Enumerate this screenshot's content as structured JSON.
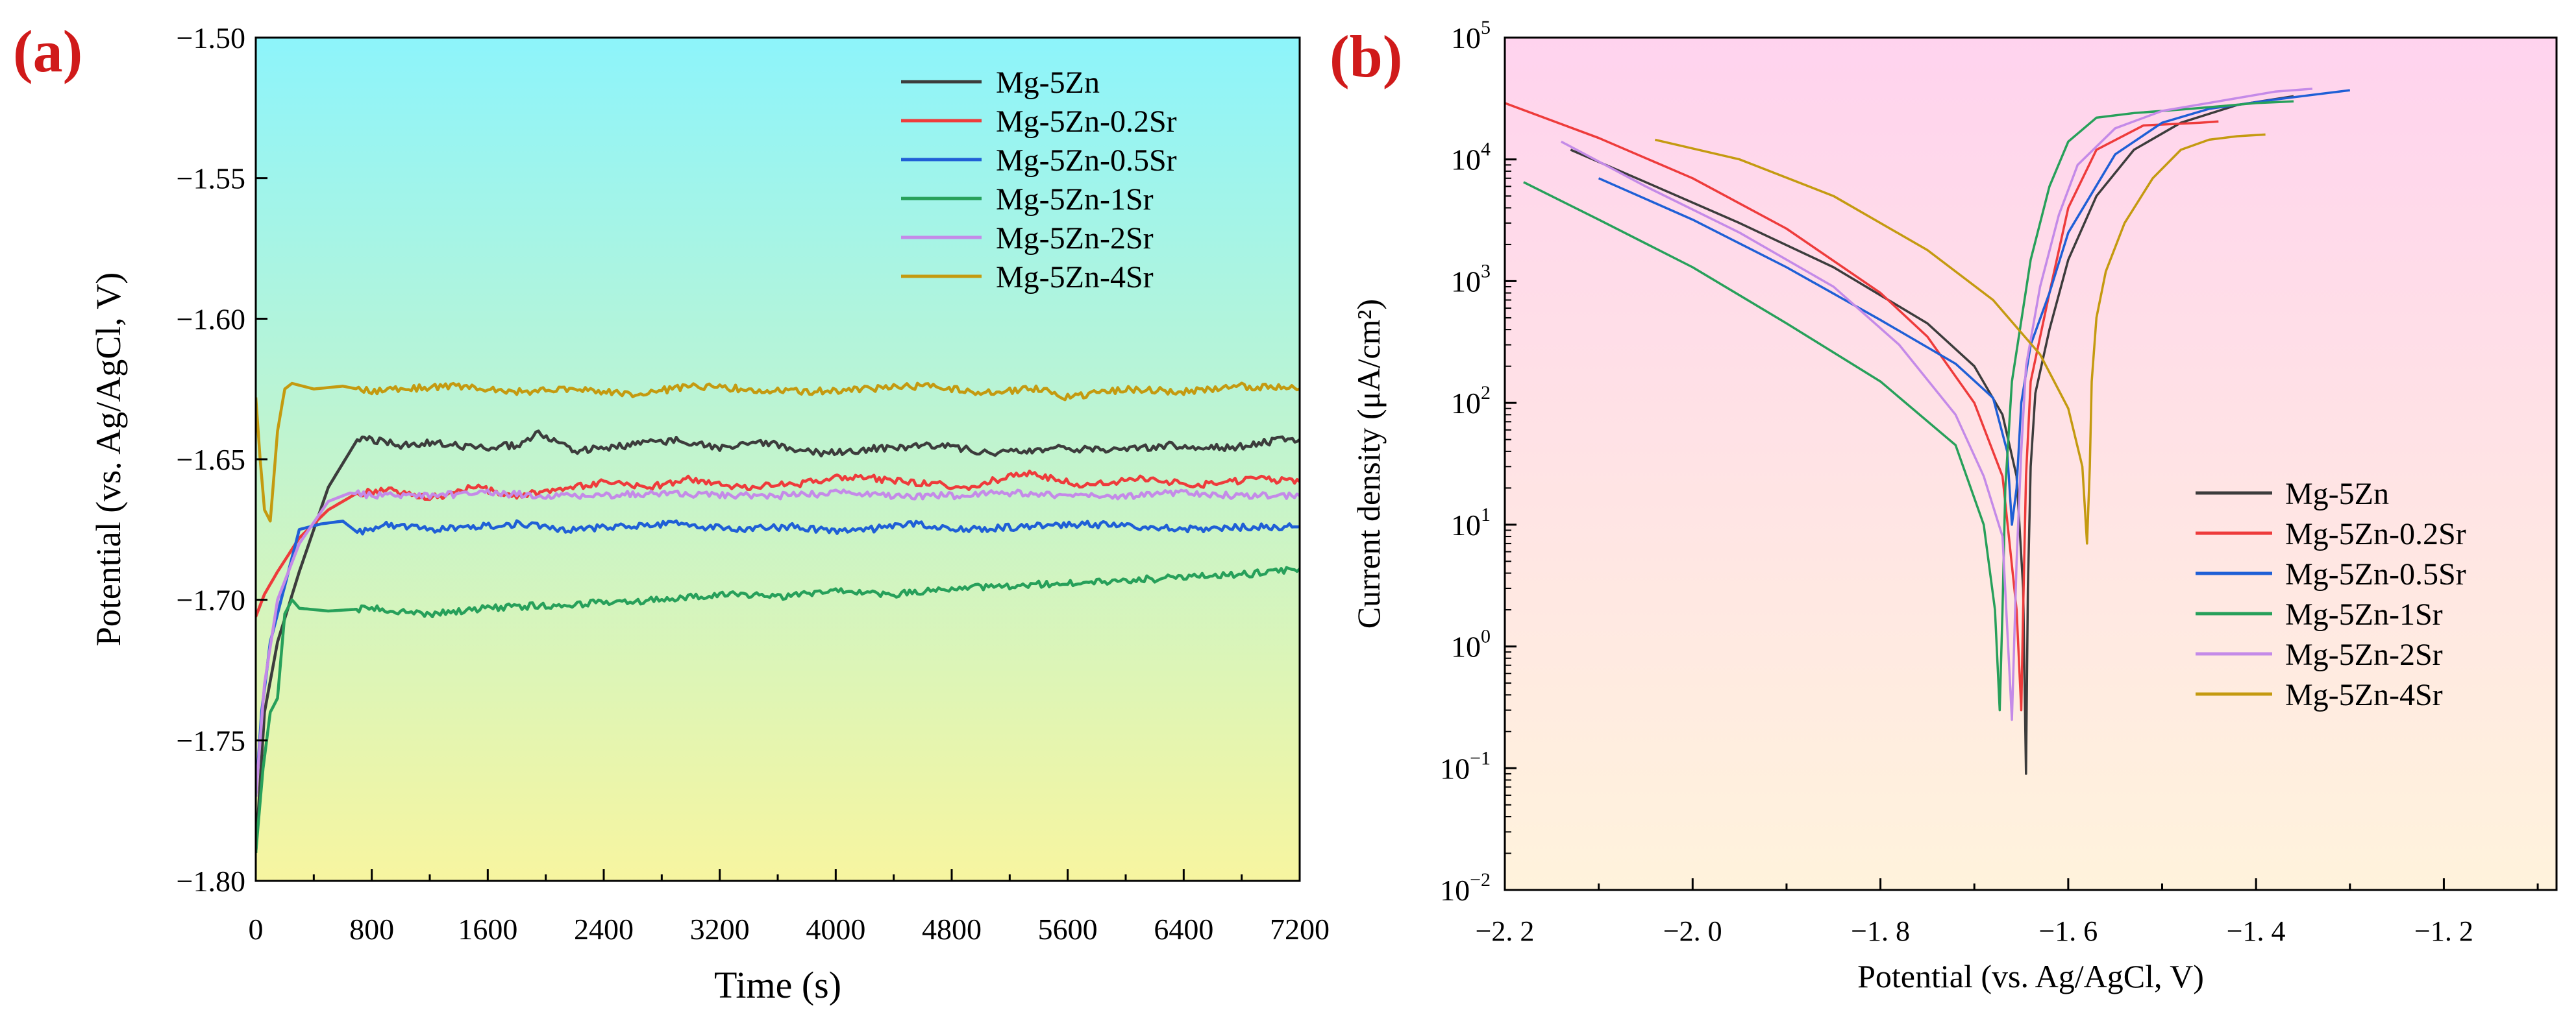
{
  "colors": {
    "Mg-5Zn": "#3c3c3c",
    "Mg-5Zn-0.2Sr": "#ee3b3b",
    "Mg-5Zn-0.5Sr": "#1f5fd6",
    "Mg-5Zn-1Sr": "#27a05a",
    "Mg-5Zn-2Sr": "#c48ae8",
    "Mg-5Zn-4Sr": "#c49a10",
    "panel_label": "#d01a1a",
    "bg_a_top": "#8df4fb",
    "bg_a_bottom": "#f7f5a0",
    "bg_b_top": "#ffd3ee",
    "bg_b_bottom": "#fff3dc"
  },
  "chart_data": [
    {
      "panel_label": "(a)",
      "type": "line",
      "title": "",
      "xlabel": "Time (s)",
      "ylabel": "Potential (vs. Ag/AgCl, V)",
      "xlim": [
        0,
        7200
      ],
      "ylim": [
        -1.8,
        -1.5
      ],
      "xticks": [
        "0",
        "800",
        "1600",
        "2400",
        "3200",
        "4000",
        "4800",
        "5600",
        "6400",
        "7200"
      ],
      "yticks": [
        "-1.50",
        "-1.55",
        "-1.60",
        "-1.65",
        "-1.70",
        "-1.75",
        "-1.80"
      ],
      "legend_position": "top-right",
      "grid": false,
      "series": [
        {
          "name": "Mg-5Zn",
          "x": [
            0,
            60,
            150,
            300,
            500,
            700,
            800,
            1000,
            1200,
            1500,
            1800,
            1950,
            2200,
            2600,
            2900,
            3200,
            3500,
            3900,
            4300,
            4700,
            5100,
            5500,
            5900,
            6300,
            6700,
            7100,
            7200
          ],
          "y": [
            -1.79,
            -1.74,
            -1.715,
            -1.69,
            -1.66,
            -1.643,
            -1.643,
            -1.645,
            -1.644,
            -1.646,
            -1.645,
            -1.641,
            -1.647,
            -1.645,
            -1.643,
            -1.646,
            -1.644,
            -1.648,
            -1.646,
            -1.645,
            -1.648,
            -1.646,
            -1.647,
            -1.645,
            -1.646,
            -1.643,
            -1.643
          ]
        },
        {
          "name": "Mg-5Zn-0.2Sr",
          "x": [
            0,
            60,
            150,
            300,
            500,
            700,
            900,
            1200,
            1500,
            1800,
            2100,
            2400,
            2700,
            3000,
            3300,
            3700,
            4100,
            4500,
            4900,
            5300,
            5700,
            6100,
            6500,
            6900,
            7200
          ],
          "y": [
            -1.706,
            -1.698,
            -1.69,
            -1.678,
            -1.668,
            -1.662,
            -1.661,
            -1.664,
            -1.66,
            -1.663,
            -1.661,
            -1.658,
            -1.66,
            -1.657,
            -1.66,
            -1.659,
            -1.656,
            -1.658,
            -1.66,
            -1.655,
            -1.659,
            -1.657,
            -1.659,
            -1.657,
            -1.658
          ]
        },
        {
          "name": "Mg-5Zn-0.5Sr",
          "x": [
            0,
            40,
            100,
            200,
            300,
            450,
            600,
            700,
            900,
            1200,
            1500,
            1800,
            2100,
            2500,
            2900,
            3300,
            3700,
            4100,
            4500,
            4900,
            5300,
            5700,
            6100,
            6500,
            6900,
            7200
          ],
          "y": [
            -1.77,
            -1.74,
            -1.715,
            -1.695,
            -1.675,
            -1.673,
            -1.672,
            -1.676,
            -1.673,
            -1.675,
            -1.674,
            -1.673,
            -1.675,
            -1.674,
            -1.673,
            -1.675,
            -1.674,
            -1.676,
            -1.673,
            -1.675,
            -1.674,
            -1.673,
            -1.674,
            -1.675,
            -1.674,
            -1.674
          ]
        },
        {
          "name": "Mg-5Zn-1Sr",
          "x": [
            0,
            50,
            100,
            150,
            200,
            250,
            300,
            500,
            800,
            1200,
            1600,
            2000,
            2400,
            2800,
            3200,
            3600,
            4000,
            4400,
            4800,
            5200,
            5600,
            6000,
            6400,
            6800,
            7200
          ],
          "y": [
            -1.79,
            -1.76,
            -1.74,
            -1.735,
            -1.705,
            -1.7,
            -1.703,
            -1.704,
            -1.703,
            -1.705,
            -1.703,
            -1.702,
            -1.701,
            -1.7,
            -1.698,
            -1.699,
            -1.697,
            -1.698,
            -1.696,
            -1.695,
            -1.694,
            -1.693,
            -1.692,
            -1.691,
            -1.689
          ]
        },
        {
          "name": "Mg-5Zn-2Sr",
          "x": [
            0,
            60,
            150,
            300,
            500,
            650,
            800,
            1200,
            1600,
            2000,
            2400,
            2800,
            3200,
            3600,
            4000,
            4400,
            4800,
            5200,
            5600,
            6000,
            6400,
            6800,
            7200
          ],
          "y": [
            -1.77,
            -1.73,
            -1.7,
            -1.68,
            -1.665,
            -1.662,
            -1.663,
            -1.663,
            -1.662,
            -1.663,
            -1.663,
            -1.662,
            -1.663,
            -1.663,
            -1.662,
            -1.663,
            -1.663,
            -1.662,
            -1.663,
            -1.663,
            -1.662,
            -1.663,
            -1.663
          ]
        },
        {
          "name": "Mg-5Zn-4Sr",
          "x": [
            0,
            30,
            60,
            100,
            150,
            200,
            250,
            400,
            600,
            800,
            1000,
            1400,
            1800,
            2200,
            2600,
            3000,
            3400,
            3800,
            4200,
            4600,
            5000,
            5400,
            5600,
            6000,
            6400,
            6800,
            7200
          ],
          "y": [
            -1.628,
            -1.65,
            -1.668,
            -1.672,
            -1.64,
            -1.625,
            -1.623,
            -1.625,
            -1.624,
            -1.626,
            -1.625,
            -1.624,
            -1.626,
            -1.625,
            -1.627,
            -1.624,
            -1.625,
            -1.626,
            -1.625,
            -1.624,
            -1.626,
            -1.625,
            -1.628,
            -1.625,
            -1.626,
            -1.624,
            -1.625
          ]
        }
      ]
    },
    {
      "panel_label": "(b)",
      "type": "line",
      "title": "",
      "xlabel": "Potential (vs. Ag/AgCl, V)",
      "ylabel": "Current density (μA/cm²)",
      "yscale": "log",
      "xlim": [
        -2.2,
        -1.08
      ],
      "ylim": [
        0.01,
        100000
      ],
      "xticks": [
        "-2.2",
        "-2.0",
        "-1.8",
        "-1.6",
        "-1.4",
        "-1.2"
      ],
      "yticks": [
        "10^-2",
        "10^-1",
        "10^0",
        "10^1",
        "10^2",
        "10^3",
        "10^4",
        "10^5"
      ],
      "legend_position": "bottom-right",
      "grid": false,
      "series": [
        {
          "name": "Mg-5Zn",
          "x": [
            -2.13,
            -2.05,
            -1.95,
            -1.85,
            -1.75,
            -1.7,
            -1.67,
            -1.655,
            -1.648,
            -1.645,
            -1.643,
            -1.64,
            -1.635,
            -1.62,
            -1.6,
            -1.57,
            -1.53,
            -1.48,
            -1.42,
            -1.36
          ],
          "y": [
            12000,
            6500,
            3000,
            1300,
            450,
            200,
            80,
            25,
            3,
            0.09,
            3,
            30,
            120,
            400,
            1500,
            5000,
            12000,
            20000,
            28000,
            33000
          ]
        },
        {
          "name": "Mg-5Zn-0.2Sr",
          "x": [
            -2.2,
            -2.1,
            -2.0,
            -1.9,
            -1.8,
            -1.75,
            -1.7,
            -1.67,
            -1.655,
            -1.65,
            -1.648,
            -1.645,
            -1.64,
            -1.62,
            -1.6,
            -1.57,
            -1.52,
            -1.46,
            -1.44
          ],
          "y": [
            29000,
            15000,
            7000,
            2700,
            800,
            350,
            100,
            25,
            2,
            0.3,
            2,
            25,
            150,
            800,
            4000,
            12000,
            19000,
            20000,
            20500
          ]
        },
        {
          "name": "Mg-5Zn-0.5Sr",
          "x": [
            -2.1,
            -2.0,
            -1.9,
            -1.8,
            -1.72,
            -1.68,
            -1.665,
            -1.66,
            -1.655,
            -1.65,
            -1.64,
            -1.62,
            -1.6,
            -1.55,
            -1.5,
            -1.45,
            -1.38,
            -1.3
          ],
          "y": [
            7000,
            3200,
            1300,
            480,
            210,
            110,
            40,
            10,
            20,
            100,
            300,
            800,
            2500,
            11000,
            20000,
            26000,
            31000,
            37000
          ]
        },
        {
          "name": "Mg-5Zn-1Sr",
          "x": [
            -2.18,
            -2.1,
            -2.0,
            -1.9,
            -1.8,
            -1.72,
            -1.69,
            -1.678,
            -1.673,
            -1.67,
            -1.667,
            -1.66,
            -1.64,
            -1.62,
            -1.6,
            -1.57,
            -1.53,
            -1.47,
            -1.4,
            -1.36
          ],
          "y": [
            6500,
            3200,
            1300,
            450,
            150,
            45,
            10,
            2,
            0.3,
            2,
            20,
            150,
            1500,
            6000,
            14000,
            22000,
            24000,
            26000,
            29000,
            30000
          ]
        },
        {
          "name": "Mg-5Zn-2Sr",
          "x": [
            -2.14,
            -2.05,
            -1.95,
            -1.85,
            -1.78,
            -1.72,
            -1.69,
            -1.67,
            -1.66,
            -1.655,
            -1.65,
            -1.645,
            -1.63,
            -1.61,
            -1.59,
            -1.55,
            -1.5,
            -1.44,
            -1.38,
            -1.34
          ],
          "y": [
            14000,
            6000,
            2500,
            900,
            300,
            80,
            25,
            8,
            0.25,
            5,
            40,
            200,
            900,
            3500,
            9000,
            18000,
            25000,
            30000,
            36000,
            38000
          ]
        },
        {
          "name": "Mg-5Zn-4Sr",
          "x": [
            -2.04,
            -1.95,
            -1.85,
            -1.75,
            -1.68,
            -1.63,
            -1.6,
            -1.585,
            -1.58,
            -1.577,
            -1.575,
            -1.57,
            -1.56,
            -1.54,
            -1.51,
            -1.48,
            -1.45,
            -1.42,
            -1.39
          ],
          "y": [
            14500,
            10000,
            5000,
            1800,
            700,
            250,
            90,
            30,
            7,
            30,
            150,
            500,
            1200,
            3000,
            7000,
            12000,
            14500,
            15500,
            16000
          ]
        }
      ]
    }
  ]
}
